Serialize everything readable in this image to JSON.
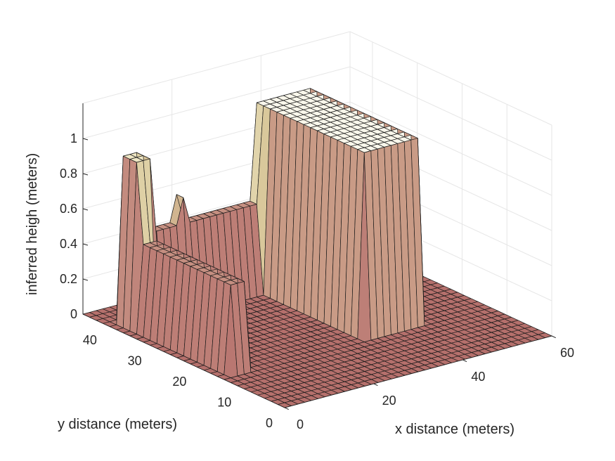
{
  "chart_data": {
    "type": "surface",
    "title": "",
    "xlabel": "x distance (meters)",
    "ylabel": "y distance (meters)",
    "zlabel": "inferred heigh (meters)",
    "xlim": [
      0,
      60
    ],
    "ylim": [
      0,
      45
    ],
    "zlim": [
      0,
      1.2
    ],
    "x_ticks": [
      0,
      20,
      40,
      60
    ],
    "y_ticks": [
      0,
      10,
      20,
      30,
      40
    ],
    "z_ticks": [
      0,
      0.2,
      0.4,
      0.6,
      0.8,
      1
    ],
    "x_tick_labels": [
      "0",
      "20",
      "40",
      "60"
    ],
    "y_tick_labels": [
      "0",
      "10",
      "20",
      "30",
      "40"
    ],
    "z_tick_labels": [
      "0",
      "0.2",
      "0.4",
      "0.6",
      "0.8",
      "1"
    ],
    "grid": true,
    "view": "3d-perspective",
    "colormap": "pink",
    "grid_spacing_m": 1.5,
    "structures": [
      {
        "name": "left wall",
        "x_range": [
          3,
          6
        ],
        "y_range": [
          14,
          40
        ],
        "height": 0.5
      },
      {
        "name": "back wall",
        "x_range": [
          3,
          40
        ],
        "y_range": [
          37,
          40
        ],
        "height": 0.5
      },
      {
        "name": "right wall",
        "x_range": [
          37,
          40
        ],
        "y_range": [
          14,
          40
        ],
        "height": 0.5
      },
      {
        "name": "left tower",
        "x_range": [
          3,
          6
        ],
        "y_range": [
          36,
          40
        ],
        "height": 0.95
      },
      {
        "name": "right tower",
        "x_range": [
          32,
          46
        ],
        "y_range": [
          14,
          40
        ],
        "height": 1.05
      },
      {
        "name": "back wall spike",
        "x_range": [
          14,
          16
        ],
        "y_range": [
          37,
          40
        ],
        "height": 0.65
      }
    ]
  }
}
